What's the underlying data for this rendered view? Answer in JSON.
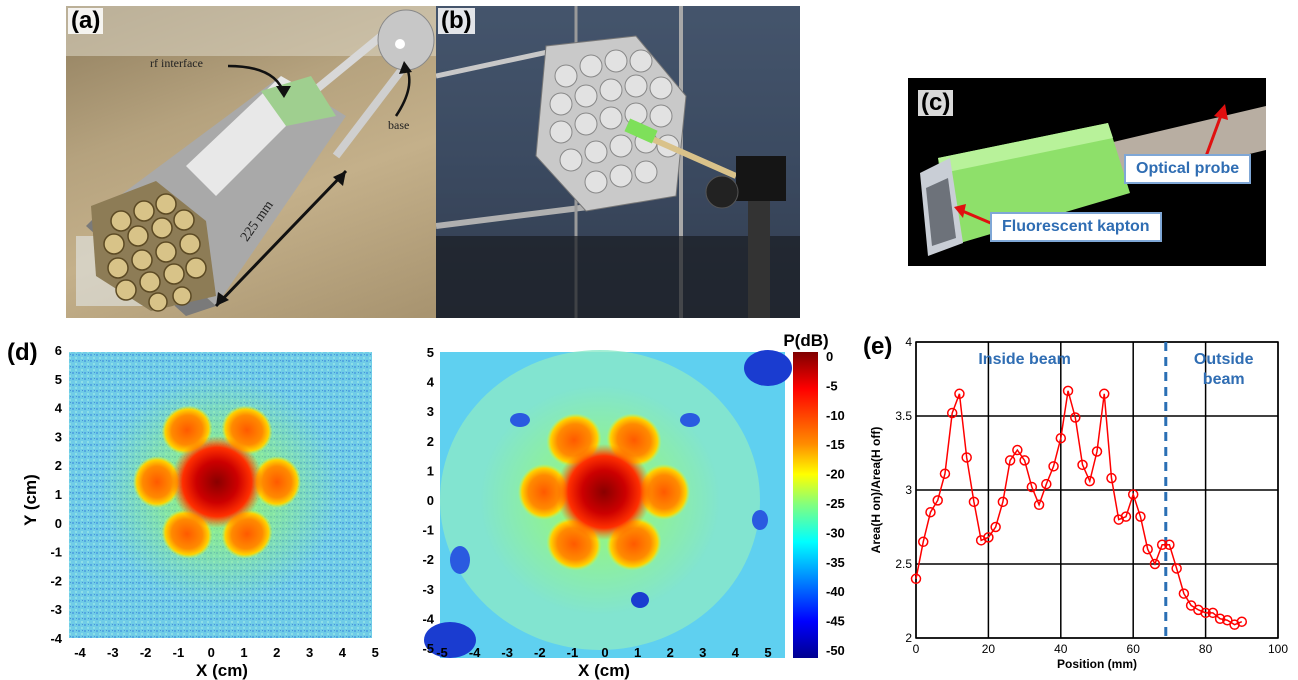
{
  "panels": {
    "a": {
      "label": "(a)",
      "annotations": {
        "rf_interface": "rf interface",
        "base": "base",
        "length": "225 mm"
      }
    },
    "b": {
      "label": "(b)"
    },
    "c": {
      "label": "(c)",
      "callouts": {
        "optical_probe": "Optical probe",
        "fluorescent_kapton": "Fluorescent kapton"
      }
    },
    "d": {
      "label": "(d)",
      "left_map": {
        "xlabel": "X (cm)",
        "ylabel": "Y (cm)",
        "xticks": [
          "-4",
          "-3",
          "-2",
          "-1",
          "0",
          "1",
          "2",
          "3",
          "4",
          "5"
        ],
        "yticks": [
          "6",
          "5",
          "4",
          "3",
          "2",
          "1",
          "0",
          "-1",
          "-2",
          "-3",
          "-4"
        ]
      },
      "right_map": {
        "xlabel": "X (cm)",
        "xticks": [
          "-5",
          "-4",
          "-3",
          "-2",
          "-1",
          "0",
          "1",
          "2",
          "3",
          "4",
          "5"
        ],
        "yticks": [
          "5",
          "4",
          "3",
          "2",
          "1",
          "0",
          "-1",
          "-2",
          "-3",
          "-4",
          "-5"
        ]
      },
      "colorbar": {
        "label": "P(dB)",
        "ticks": [
          "0",
          "-5",
          "-10",
          "-15",
          "-20",
          "-25",
          "-30",
          "-35",
          "-40",
          "-45",
          "-50"
        ],
        "colors": [
          "#7f0000",
          "#ff0000",
          "#ff8c00",
          "#ffff00",
          "#80ff80",
          "#00ffff",
          "#0080ff",
          "#0000ff",
          "#00008f"
        ]
      }
    },
    "e": {
      "label": "(e)"
    }
  },
  "chart_data": {
    "type": "line",
    "xlabel": "Position (mm)",
    "ylabel": "Area(H on)/Area(H off)",
    "xlim": [
      0,
      100
    ],
    "ylim": [
      2,
      4
    ],
    "xticks": [
      0,
      20,
      40,
      60,
      80,
      100
    ],
    "yticks": [
      2,
      2.5,
      3,
      3.5,
      4
    ],
    "grid": true,
    "series": [
      {
        "color": "#ff0000",
        "marker": "circle",
        "x": [
          0,
          2,
          4,
          6,
          8,
          10,
          12,
          14,
          16,
          18,
          20,
          22,
          24,
          26,
          28,
          30,
          32,
          34,
          36,
          38,
          40,
          42,
          44,
          46,
          48,
          50,
          52,
          54,
          56,
          58,
          60,
          62,
          64,
          66,
          68,
          70,
          72,
          74,
          76,
          78,
          80,
          82,
          84,
          86,
          88,
          90
        ],
        "y": [
          2.4,
          2.65,
          2.85,
          2.93,
          3.11,
          3.52,
          3.65,
          3.22,
          2.92,
          2.66,
          2.68,
          2.75,
          2.92,
          3.2,
          3.27,
          3.2,
          3.02,
          2.9,
          3.04,
          3.16,
          3.35,
          3.67,
          3.49,
          3.17,
          3.06,
          3.26,
          3.65,
          3.08,
          2.8,
          2.82,
          2.97,
          2.82,
          2.6,
          2.5,
          2.63,
          2.63,
          2.47,
          2.3,
          2.22,
          2.19,
          2.17,
          2.17,
          2.13,
          2.12,
          2.09,
          2.11
        ]
      }
    ],
    "annotations": {
      "inside_beam": "Inside beam",
      "outside_beam_1": "Outside",
      "outside_beam_2": "beam",
      "divider_x": 69
    },
    "xtick_labels": [
      "0",
      "20",
      "40",
      "60",
      "80",
      "100"
    ],
    "ytick_labels": [
      "2",
      "2.5",
      "3",
      "3.5",
      "4"
    ]
  }
}
